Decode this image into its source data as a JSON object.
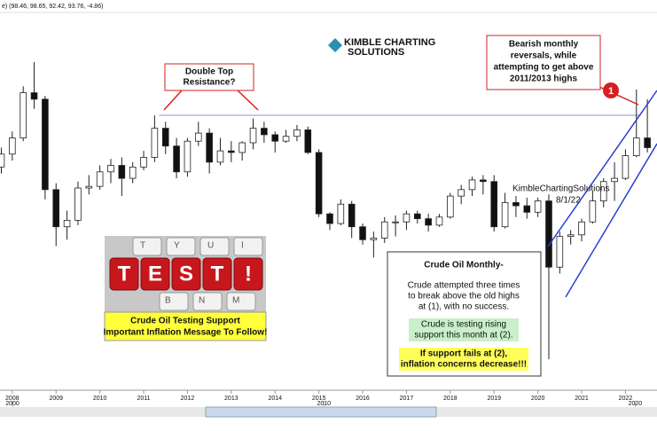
{
  "header": {
    "legend": "e) (98.46, 98.65, 92.42, 93.76, -4.86)"
  },
  "logo": {
    "line1": "KIMBLE CHARTING",
    "line2": "SOLUTIONS"
  },
  "watermark": {
    "name": "KimbleChartingSolutions",
    "date": "8/1/22"
  },
  "chart_data": {
    "type": "candlestick",
    "x": [
      2007.75,
      2008,
      2008.25,
      2008.5,
      2008.75,
      2009,
      2009.25,
      2009.5,
      2009.75,
      2010,
      2010.25,
      2010.5,
      2010.75,
      2011,
      2011.25,
      2011.5,
      2011.75,
      2012,
      2012.25,
      2012.5,
      2012.75,
      2013,
      2013.25,
      2013.5,
      2013.75,
      2014,
      2014.25,
      2014.5,
      2014.75,
      2015,
      2015.25,
      2015.5,
      2015.75,
      2016,
      2016.25,
      2016.5,
      2016.75,
      2017,
      2017.25,
      2017.5,
      2017.75,
      2018,
      2018.25,
      2018.5,
      2018.75,
      2019,
      2019.25,
      2019.5,
      2019.75,
      2020,
      2020.25,
      2020.5,
      2020.75,
      2021,
      2021.25,
      2021.5,
      2021.75,
      2022,
      2022.25,
      2022.5
    ],
    "open": [
      82,
      90,
      100,
      128,
      124,
      68,
      45,
      49,
      69,
      70,
      79,
      83,
      75,
      82,
      88,
      106,
      95,
      79,
      98,
      103,
      85,
      92,
      91,
      97,
      106,
      102,
      98,
      101,
      105,
      91,
      53,
      47,
      59,
      45,
      37,
      38,
      48,
      48,
      53,
      50,
      46,
      51,
      64,
      68,
      74,
      73,
      45,
      60,
      58,
      54,
      61,
      20,
      39,
      40,
      48,
      61,
      73,
      75,
      89,
      100
    ],
    "high": [
      94,
      104,
      132,
      147,
      126,
      72,
      55,
      73,
      77,
      83,
      87,
      88,
      85,
      92,
      114,
      110,
      100,
      100,
      110,
      106,
      100,
      98,
      98,
      112,
      110,
      104,
      105,
      108,
      107,
      93,
      54,
      62,
      61,
      47,
      42,
      51,
      52,
      55,
      55,
      53,
      53,
      66,
      71,
      76,
      77,
      77,
      66,
      64,
      63,
      63,
      65,
      42,
      43,
      50,
      67,
      75,
      85,
      93,
      130,
      124
    ],
    "low": [
      78,
      86,
      98,
      118,
      62,
      33,
      37,
      46,
      65,
      68,
      72,
      64,
      72,
      80,
      85,
      90,
      75,
      76,
      95,
      78,
      83,
      85,
      86,
      93,
      97,
      91,
      97,
      98,
      90,
      51,
      43,
      46,
      38,
      34,
      26,
      35,
      39,
      43,
      47,
      42,
      45,
      50,
      59,
      64,
      65,
      42,
      44,
      51,
      50,
      51,
      -37,
      16,
      34,
      36,
      47,
      57,
      61,
      74,
      88,
      91
    ],
    "close": [
      90,
      100,
      128,
      124,
      68,
      45,
      49,
      69,
      70,
      79,
      83,
      75,
      82,
      88,
      106,
      95,
      79,
      98,
      103,
      85,
      92,
      91,
      97,
      106,
      102,
      98,
      101,
      105,
      91,
      53,
      47,
      59,
      45,
      37,
      38,
      48,
      48,
      53,
      50,
      46,
      51,
      64,
      68,
      74,
      73,
      45,
      60,
      58,
      54,
      61,
      20,
      39,
      40,
      48,
      61,
      73,
      75,
      89,
      100,
      94
    ],
    "up_color": "#ffffff",
    "down_color": "#111111",
    "xlim": [
      2007.72,
      2022.72
    ],
    "xticks": [
      2008,
      2009,
      2010,
      2011,
      2012,
      2013,
      2014,
      2015,
      2016,
      2017,
      2018,
      2019,
      2020,
      2021,
      2022
    ],
    "ylim": [
      -40,
      150
    ],
    "resistance": {
      "value": 114,
      "x": [
        2011.35,
        2022.35
      ],
      "color": "#a9b7ea"
    }
  },
  "navigator": {
    "xlim": [
      1999.6,
      2020.7
    ],
    "xticks": [
      2000,
      2010,
      2020
    ]
  },
  "callouts": {
    "double_top": [
      "Double Top",
      "Resistance?"
    ],
    "bearish": [
      "Bearish monthly",
      "reversals, while",
      "attempting to get above",
      "2011/2013 highs"
    ],
    "marker": "1"
  },
  "test_image": {
    "keys_top": [
      "T",
      "Y",
      "U",
      "I"
    ],
    "word_keys": [
      "T",
      "E",
      "S",
      "T",
      "!"
    ],
    "keys_bottom": [
      "B",
      "N",
      "M"
    ],
    "caption": [
      "Crude Oil Testing Support",
      "Important Inflation Message To Follow!"
    ]
  },
  "note": {
    "title": "Crude Oil Monthly-",
    "body": [
      "Crude attempted three times",
      "to break above the old highs",
      "at (1), with no success."
    ],
    "green": [
      "Crude is testing rising",
      "support this month at (2)."
    ],
    "yellow": [
      "If support fails at (2),",
      "inflation concerns decrease!!!"
    ]
  }
}
